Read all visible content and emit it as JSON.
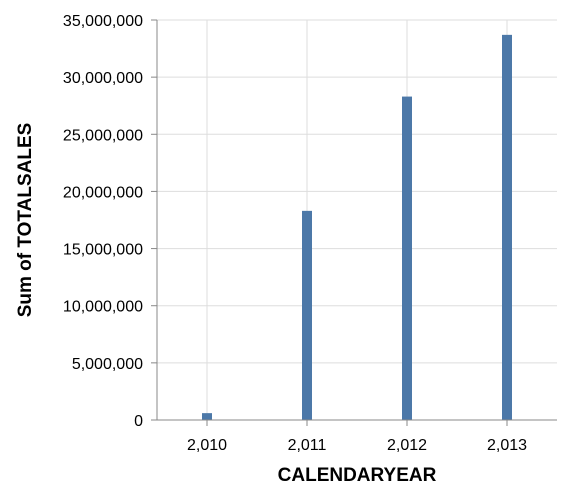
{
  "chart_data": {
    "type": "bar",
    "categories": [
      "2,010",
      "2,011",
      "2,012",
      "2,013"
    ],
    "values": [
      600000,
      18300000,
      28300000,
      33700000
    ],
    "xlabel": "CALENDARYEAR",
    "ylabel": "Sum of TOTALSALES",
    "ylim": [
      0,
      35000000
    ],
    "yticks": [
      {
        "value": 0,
        "label": "0"
      },
      {
        "value": 5000000,
        "label": "5,000,000"
      },
      {
        "value": 10000000,
        "label": "10,000,000"
      },
      {
        "value": 15000000,
        "label": "15,000,000"
      },
      {
        "value": 20000000,
        "label": "20,000,000"
      },
      {
        "value": 25000000,
        "label": "25,000,000"
      },
      {
        "value": 30000000,
        "label": "30,000,000"
      },
      {
        "value": 35000000,
        "label": "35,000,000"
      }
    ],
    "grid": true,
    "bar_color": "#4c78a8"
  }
}
